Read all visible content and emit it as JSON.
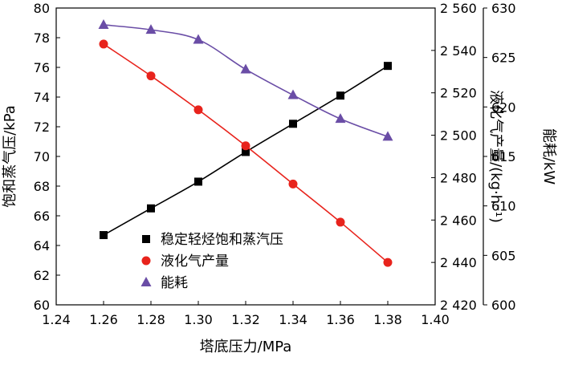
{
  "chart_data": {
    "type": "line",
    "xlabel": "塔底压力/MPa",
    "x_ticks": [
      "1.24",
      "1.26",
      "1.28",
      "1.30",
      "1.32",
      "1.34",
      "1.36",
      "1.38",
      "1.40"
    ],
    "xlim": [
      1.24,
      1.4
    ],
    "axes": {
      "y_left": {
        "label": "饱和蒸气压/kPa",
        "ylim": [
          60,
          80
        ],
        "ticks": [
          "60",
          "62",
          "64",
          "66",
          "68",
          "70",
          "72",
          "74",
          "76",
          "78",
          "80"
        ]
      },
      "y_right1": {
        "label": "液化气产量/(kg·h⁻¹)",
        "ylim": [
          2420,
          2560
        ],
        "ticks": [
          "2 420",
          "2 440",
          "2 460",
          "2 480",
          "2 500",
          "2 520",
          "2 540",
          "2 560"
        ]
      },
      "y_right2": {
        "label": "能耗/kW",
        "ylim": [
          600,
          630
        ],
        "ticks": [
          "600",
          "605",
          "610",
          "615",
          "620",
          "625",
          "630"
        ]
      }
    },
    "series": [
      {
        "name": "稳定轻烃饱和蒸汽压",
        "axis": "y_left",
        "marker": "square",
        "color": "#000000",
        "x": [
          1.26,
          1.28,
          1.3,
          1.32,
          1.34,
          1.36,
          1.38
        ],
        "values": [
          64.7,
          66.5,
          68.3,
          70.3,
          72.2,
          74.1,
          76.1
        ]
      },
      {
        "name": "液化气产量",
        "axis": "y_right1",
        "marker": "circle",
        "color": "#e8231c",
        "x": [
          1.26,
          1.28,
          1.3,
          1.32,
          1.34,
          1.36,
          1.38
        ],
        "values": [
          2543,
          2528,
          2512,
          2495,
          2477,
          2459,
          2440
        ]
      },
      {
        "name": "能耗",
        "axis": "y_right2",
        "marker": "triangle",
        "color": "#6a4da6",
        "x": [
          1.26,
          1.28,
          1.3,
          1.32,
          1.34,
          1.36,
          1.38
        ],
        "values": [
          628.3,
          627.8,
          626.8,
          623.8,
          621.2,
          618.8,
          617.0
        ]
      }
    ],
    "legend_position": "bottom-center",
    "grid": false
  }
}
